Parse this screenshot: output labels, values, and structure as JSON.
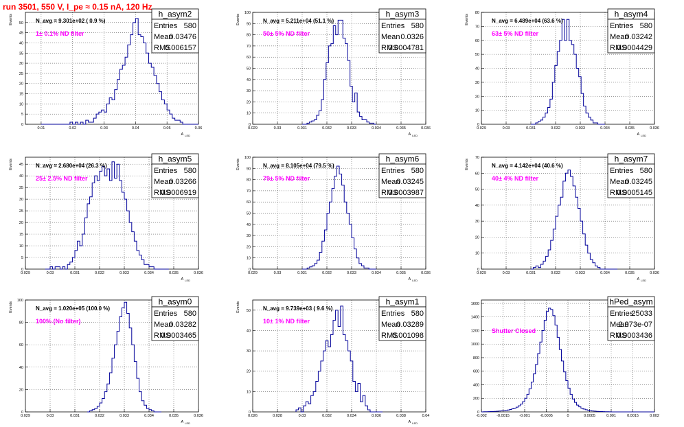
{
  "header": {
    "title": "run 3501,   550 V, I_pe ≈ 0.15 nA, 120 Hz"
  },
  "colors": {
    "title": "#ff0000",
    "annotation": "#ff00ff",
    "histogram": "#000099",
    "grid": "#000000"
  },
  "stat_labels": {
    "entries": "Entries",
    "mean": "Mean",
    "rms": "RMS"
  },
  "chart_data": [
    {
      "type": "histogram",
      "title": "h_asym2",
      "navg": "N_avg = 9.301e+02 ( 0.9 %)",
      "annotation": "1± 0.1% ND filter",
      "stats": {
        "entries": "580",
        "mean": "0.03476",
        "rms": "0.006157"
      },
      "xlabel": "A",
      "xlabel_sub": "LED",
      "ylabel": "Events",
      "xlim": [
        0.005,
        0.06
      ],
      "ylim": [
        0,
        55
      ],
      "xticks": [
        "0.01",
        "0.02",
        "0.03",
        "0.04",
        "0.05",
        "0.06"
      ],
      "yticks": [
        "0",
        "5",
        "10",
        "15",
        "20",
        "25",
        "30",
        "35",
        "40",
        "45",
        "50"
      ],
      "bins": {
        "xmin": 0.01,
        "xmax": 0.06,
        "counts": [
          0,
          0,
          0,
          0,
          0,
          0,
          0,
          0,
          0,
          0,
          0,
          1,
          0,
          1,
          0,
          1,
          0,
          2,
          1,
          1,
          3,
          5,
          6,
          7,
          6,
          10,
          13,
          12,
          17,
          22,
          27,
          29,
          33,
          39,
          44,
          50,
          52,
          44,
          43,
          40,
          35,
          30,
          28,
          24,
          20,
          16,
          12,
          10,
          7,
          5,
          3,
          2,
          2,
          1,
          0,
          0,
          0,
          0,
          0,
          0
        ]
      }
    },
    {
      "type": "histogram",
      "title": "h_asym3",
      "navg": "N_avg = 5.211e+04 (51.1 %)",
      "annotation": "50± 5% ND filter",
      "stats": {
        "entries": "580",
        "mean": "0.0326",
        "rms": "0.0004781"
      },
      "xlabel": "A",
      "xlabel_sub": "LED",
      "ylabel": "Events",
      "xlim": [
        0.029,
        0.036
      ],
      "ylim": [
        0,
        100
      ],
      "xticks": [
        "0.029",
        "0.03",
        "0.031",
        "0.032",
        "0.033",
        "0.034",
        "0.035",
        "0.036"
      ],
      "yticks": [
        "0",
        "10",
        "20",
        "30",
        "40",
        "50",
        "60",
        "70",
        "80",
        "90",
        "100"
      ],
      "bins": {
        "xmin": 0.031,
        "xmax": 0.034,
        "counts": [
          0,
          0,
          1,
          2,
          3,
          4,
          8,
          12,
          22,
          40,
          55,
          70,
          72,
          88,
          80,
          93,
          93,
          77,
          72,
          57,
          34,
          20,
          28,
          11,
          7,
          4,
          4,
          2,
          1,
          1,
          0
        ]
      }
    },
    {
      "type": "histogram",
      "title": "h_asym4",
      "navg": "N_avg = 6.489e+04 (63.6 %)",
      "annotation": "63± 5% ND filter",
      "stats": {
        "entries": "580",
        "mean": "0.03242",
        "rms": "0.0004429"
      },
      "xlabel": "A",
      "xlabel_sub": "LED",
      "ylabel": "Events",
      "xlim": [
        0.029,
        0.036
      ],
      "ylim": [
        0,
        80
      ],
      "xticks": [
        "0.029",
        "0.03",
        "0.031",
        "0.032",
        "0.033",
        "0.034",
        "0.035",
        "0.036"
      ],
      "yticks": [
        "0",
        "10",
        "20",
        "30",
        "40",
        "50",
        "60",
        "70",
        "80"
      ],
      "bins": {
        "xmin": 0.031,
        "xmax": 0.034,
        "counts": [
          0,
          0,
          1,
          2,
          3,
          5,
          8,
          12,
          18,
          30,
          42,
          52,
          60,
          75,
          60,
          75,
          60,
          57,
          50,
          40,
          34,
          22,
          13,
          8,
          5,
          3,
          1,
          1,
          0,
          0,
          0
        ]
      }
    },
    {
      "type": "histogram",
      "title": "h_asym5",
      "navg": "N_avg = 2.680e+04 (26.3 %)",
      "annotation": "25± 2.5% ND filter",
      "stats": {
        "entries": "580",
        "mean": "0.03266",
        "rms": "0.0006919"
      },
      "xlabel": "A",
      "xlabel_sub": "LED",
      "ylabel": "Events",
      "xlim": [
        0.029,
        0.036
      ],
      "ylim": [
        0,
        48
      ],
      "xticks": [
        "0.029",
        "0.03",
        "0.031",
        "0.032",
        "0.033",
        "0.034",
        "0.035",
        "0.036"
      ],
      "yticks": [
        "0",
        "5",
        "10",
        "15",
        "20",
        "25",
        "30",
        "35",
        "40",
        "45"
      ],
      "bins": {
        "xmin": 0.0298,
        "xmax": 0.0348,
        "counts": [
          0,
          0,
          1,
          0,
          1,
          1,
          0,
          1,
          0,
          2,
          3,
          5,
          8,
          12,
          10,
          15,
          22,
          28,
          31,
          37,
          40,
          38,
          42,
          44,
          40,
          43,
          38,
          46,
          39,
          45,
          38,
          33,
          30,
          25,
          20,
          16,
          12,
          8,
          6,
          4,
          2,
          2,
          1,
          1,
          0,
          0,
          0,
          0,
          0,
          0
        ]
      }
    },
    {
      "type": "histogram",
      "title": "h_asym6",
      "navg": "N_avg = 8.105e+04 (79.5 %)",
      "annotation": "79± 5% ND filter",
      "stats": {
        "entries": "580",
        "mean": "0.03245",
        "rms": "0.0003987"
      },
      "xlabel": "A",
      "xlabel_sub": "LED",
      "ylabel": "Events",
      "xlim": [
        0.029,
        0.036
      ],
      "ylim": [
        0,
        100
      ],
      "xticks": [
        "0.029",
        "0.03",
        "0.031",
        "0.032",
        "0.033",
        "0.034",
        "0.035",
        "0.036"
      ],
      "yticks": [
        "0",
        "10",
        "20",
        "30",
        "40",
        "50",
        "60",
        "70",
        "80",
        "90",
        "100"
      ],
      "bins": {
        "xmin": 0.031,
        "xmax": 0.034,
        "counts": [
          0,
          0,
          1,
          2,
          3,
          5,
          8,
          15,
          25,
          35,
          50,
          60,
          72,
          83,
          92,
          85,
          75,
          60,
          50,
          40,
          28,
          18,
          10,
          5,
          3,
          1,
          1,
          0,
          0,
          0
        ]
      }
    },
    {
      "type": "histogram",
      "title": "h_asym7",
      "navg": "N_avg = 4.142e+04 (40.6 %)",
      "annotation": "40± 4% ND filter",
      "stats": {
        "entries": "580",
        "mean": "0.03245",
        "rms": "0.0005145"
      },
      "xlabel": "A",
      "xlabel_sub": "LED",
      "ylabel": "Events",
      "xlim": [
        0.029,
        0.036
      ],
      "ylim": [
        0,
        70
      ],
      "xticks": [
        "0.029",
        "0.03",
        "0.031",
        "0.032",
        "0.033",
        "0.034",
        "0.035",
        "0.036"
      ],
      "yticks": [
        "0",
        "10",
        "20",
        "30",
        "40",
        "50",
        "60",
        "70"
      ],
      "bins": {
        "xmin": 0.031,
        "xmax": 0.0345,
        "counts": [
          0,
          1,
          2,
          1,
          3,
          5,
          8,
          12,
          18,
          25,
          33,
          40,
          45,
          55,
          60,
          62,
          58,
          52,
          45,
          38,
          30,
          22,
          15,
          10,
          6,
          4,
          2,
          1,
          0,
          0,
          0,
          0,
          0,
          0,
          0
        ]
      }
    },
    {
      "type": "histogram",
      "title": "h_asym0",
      "navg": "N_avg = 1.020e+05 (100.0 %)",
      "annotation": "100% (No filter)",
      "stats": {
        "entries": "580",
        "mean": "0.03282",
        "rms": "0.0003465"
      },
      "xlabel": "A",
      "xlabel_sub": "LED",
      "ylabel": "Events",
      "xlim": [
        0.029,
        0.036
      ],
      "ylim": [
        0,
        100
      ],
      "xticks": [
        "0.029",
        "0.03",
        "0.031",
        "0.032",
        "0.033",
        "0.034",
        "0.035",
        "0.036"
      ],
      "yticks": [
        "0",
        "20",
        "40",
        "60",
        "80",
        "100"
      ],
      "bins": {
        "xmin": 0.0315,
        "xmax": 0.0345,
        "counts": [
          0,
          1,
          2,
          3,
          5,
          8,
          12,
          18,
          25,
          35,
          48,
          60,
          72,
          85,
          93,
          98,
          88,
          75,
          60,
          45,
          30,
          18,
          10,
          6,
          3,
          2,
          1,
          0,
          0,
          0
        ]
      }
    },
    {
      "type": "histogram",
      "title": "h_asym1",
      "navg": "N_avg = 9.739e+03 ( 9.6 %)",
      "annotation": "10± 1% ND filter",
      "stats": {
        "entries": "580",
        "mean": "0.03289",
        "rms": "0.001098"
      },
      "xlabel": "A",
      "xlabel_sub": "LED",
      "ylabel": "Events",
      "xlim": [
        0.026,
        0.04
      ],
      "ylim": [
        0,
        55
      ],
      "xticks": [
        "0.026",
        "0.028",
        "0.03",
        "0.032",
        "0.034",
        "0.036",
        "0.038",
        "0.04"
      ],
      "yticks": [
        "0",
        "10",
        "20",
        "30",
        "40",
        "50"
      ],
      "bins": {
        "xmin": 0.0295,
        "xmax": 0.0365,
        "counts": [
          1,
          2,
          0,
          3,
          5,
          4,
          8,
          10,
          15,
          20,
          25,
          30,
          35,
          32,
          38,
          45,
          50,
          42,
          52,
          38,
          35,
          30,
          25,
          15,
          10,
          14,
          5,
          8,
          3,
          1,
          0,
          0,
          0,
          0,
          0
        ]
      }
    },
    {
      "type": "histogram",
      "title": "hPed_asym",
      "navg": "",
      "annotation": "Shutter Closed",
      "stats": {
        "entries": "25033",
        "mean": "2.973e-07",
        "rms": "0.0003436"
      },
      "xlabel": "",
      "xlabel_sub": "",
      "ylabel": "",
      "xlim": [
        -0.002,
        0.002
      ],
      "ylim": [
        0,
        1650
      ],
      "xticks": [
        "-0.002",
        "-0.0015",
        "-0.001",
        "-0.0005",
        "0",
        "0.0005",
        "0.001",
        "0.0015",
        "0.002"
      ],
      "yticks": [
        "0",
        "200",
        "400",
        "600",
        "800",
        "1000",
        "1200",
        "1400",
        "1600"
      ],
      "bins": {
        "xmin": -0.002,
        "xmax": 0.002,
        "counts": [
          0,
          2,
          3,
          4,
          5,
          6,
          8,
          10,
          12,
          15,
          18,
          22,
          28,
          35,
          45,
          55,
          70,
          90,
          115,
          150,
          200,
          260,
          340,
          440,
          560,
          700,
          860,
          1030,
          1200,
          1350,
          1480,
          1530,
          1510,
          1420,
          1280,
          1100,
          920,
          750,
          590,
          460,
          350,
          260,
          190,
          140,
          100,
          75,
          55,
          42,
          32,
          25,
          18,
          14,
          11,
          8,
          6,
          5,
          4,
          3,
          2,
          1,
          0,
          0,
          0,
          0,
          0,
          0,
          0,
          0,
          0,
          0,
          0,
          0,
          0,
          0,
          0,
          0,
          0,
          0,
          0,
          0
        ]
      }
    }
  ]
}
